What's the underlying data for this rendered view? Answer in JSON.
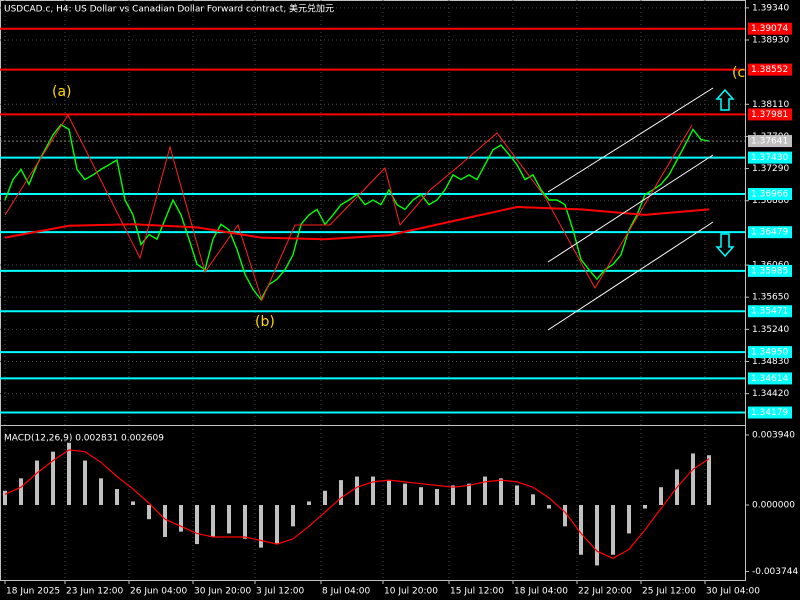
{
  "chart_data": [
    {
      "type": "line",
      "title": "USDCAD.c, H4:  US Dollar vs Canadian Dollar Forward contract, 美元兑加元",
      "xlim": [
        -0.625,
        92.5
      ],
      "xticks": [
        {
          "value": 0,
          "label": "18 Jun 2025"
        },
        {
          "value": 7.5,
          "label": "23 Jun 12:00"
        },
        {
          "value": 15.5,
          "label": "26 Jun 04:00"
        },
        {
          "value": 23.5,
          "label": "30 Jun 20:00"
        },
        {
          "value": 31.25,
          "label": "3 Jul 12:00"
        },
        {
          "value": 39.5,
          "label": "8 Jul 04:00"
        },
        {
          "value": 47.25,
          "label": "10 Jul 20:00"
        },
        {
          "value": 55.5,
          "label": "15 Jul 12:00"
        },
        {
          "value": 63.5,
          "label": "18 Jul 04:00"
        },
        {
          "value": 71.5,
          "label": "22 Jul 20:00"
        },
        {
          "value": 79.5,
          "label": "25 Jul 12:00"
        },
        {
          "value": 87.5,
          "label": "30 Jul 04:00"
        }
      ],
      "ylim": [
        1.3402,
        1.3944
      ],
      "yticks": [
        {
          "value": 1.3934,
          "label": "1.39340"
        },
        {
          "value": 1.3893,
          "label": "1.38930"
        },
        {
          "value": 1.3811,
          "label": "1.38110"
        },
        {
          "value": 1.377,
          "label": "1.37700"
        },
        {
          "value": 1.3729,
          "label": "1.37290"
        },
        {
          "value": 1.3688,
          "label": "1.36880"
        },
        {
          "value": 1.3606,
          "label": "1.36060"
        },
        {
          "value": 1.3565,
          "label": "1.35650"
        },
        {
          "value": 1.3524,
          "label": "1.35240"
        },
        {
          "value": 1.3483,
          "label": "1.34830"
        },
        {
          "value": 1.3442,
          "label": "1.34420"
        }
      ],
      "grid": true,
      "series": [
        {
          "color": "#00ff00",
          "values": [
            1.3689,
            1.3715,
            1.3728,
            1.3709,
            1.3734,
            1.3753,
            1.3772,
            1.3785,
            1.3779,
            1.3728,
            1.3715,
            1.3721,
            1.3728,
            1.3734,
            1.374,
            1.3689,
            1.367,
            1.3632,
            1.3645,
            1.3639,
            1.3664,
            1.3689,
            1.367,
            1.3639,
            1.3607,
            1.36,
            1.3639,
            1.3658,
            1.3651,
            1.3626,
            1.3594,
            1.3575,
            1.3562,
            1.3581,
            1.3588,
            1.36,
            1.3619,
            1.3658,
            1.367,
            1.3677,
            1.3658,
            1.367,
            1.3683,
            1.3689,
            1.3696,
            1.3683,
            1.3689,
            1.3683,
            1.3702,
            1.3683,
            1.3677,
            1.3689,
            1.3696,
            1.3683,
            1.3689,
            1.3702,
            1.3721,
            1.3715,
            1.3721,
            1.3715,
            1.3734,
            1.3753,
            1.3759,
            1.3747,
            1.3734,
            1.3715,
            1.3721,
            1.3702,
            1.3689,
            1.3689,
            1.3683,
            1.3651,
            1.3613,
            1.36,
            1.3588,
            1.36,
            1.3607,
            1.3619,
            1.3651,
            1.367,
            1.3696,
            1.3702,
            1.3709,
            1.3721,
            1.374,
            1.3759,
            1.3779,
            1.3766,
            1.3764
          ]
        },
        {
          "color": "#ff0000",
          "x": [
            0,
            8,
            16,
            24,
            32,
            40,
            48,
            56,
            64,
            72,
            80,
            88
          ],
          "values": [
            1.3641,
            1.3656,
            1.3658,
            1.3654,
            1.3641,
            1.3639,
            1.3644,
            1.3662,
            1.368,
            1.3677,
            1.367,
            1.3677
          ]
        }
      ],
      "last_price": {
        "value": 1.37641,
        "label": "1.37641"
      },
      "levels": [
        {
          "value": 1.39074,
          "label": "1.39074",
          "color": "#ff0000"
        },
        {
          "value": 1.38552,
          "label": "1.38552",
          "color": "#ff0000"
        },
        {
          "value": 1.37981,
          "label": "1.37981",
          "color": "#ff0000"
        },
        {
          "value": 1.3743,
          "label": "1.37430",
          "color": "#00ffff"
        },
        {
          "value": 1.36966,
          "label": "1.36966",
          "color": "#00ffff"
        },
        {
          "value": 1.36479,
          "label": "1.36479",
          "color": "#00ffff"
        },
        {
          "value": 1.35985,
          "label": "1.35985",
          "color": "#00ffff"
        },
        {
          "value": 1.35471,
          "label": "1.35471",
          "color": "#00ffff"
        },
        {
          "value": 1.3495,
          "label": "1.34950",
          "color": "#00ffff"
        },
        {
          "value": 1.34614,
          "label": "1.34614",
          "color": "#00ffff"
        },
        {
          "value": 1.34179,
          "label": "1.34179",
          "color": "#00ffff"
        }
      ],
      "annotations": [
        "(a)",
        "(b)",
        "(c"
      ]
    },
    {
      "type": "macd",
      "title": "MACD(12,26,9) 0.002831 0.002609",
      "xlim": [
        -0.625,
        92.5
      ],
      "ylim": [
        -0.00422,
        0.0045
      ],
      "yticks": [
        {
          "value": 0.00394,
          "label": "0.003940"
        },
        {
          "value": 0,
          "label": "0.000000"
        },
        {
          "value": -0.003744,
          "label": "-0.003744"
        }
      ],
      "x": [
        0,
        2,
        4,
        6,
        8,
        10,
        12,
        14,
        16,
        18,
        20,
        22,
        24,
        26,
        28,
        30,
        32,
        34,
        36,
        38,
        40,
        42,
        44,
        46,
        48,
        50,
        52,
        54,
        56,
        58,
        60,
        62,
        64,
        66,
        68,
        70,
        72,
        74,
        76,
        78,
        80,
        82,
        84,
        86,
        88
      ],
      "series": [
        {
          "type": "bar",
          "color": "#c0c0c0",
          "values": [
            0.0008,
            0.0015,
            0.0025,
            0.003,
            0.0035,
            0.0025,
            0.0015,
            0.0009,
            0.0002,
            -0.0008,
            -0.0018,
            -0.0015,
            -0.0022,
            -0.0018,
            -0.0016,
            -0.0019,
            -0.0024,
            -0.0022,
            -0.0012,
            0.0002,
            0.0008,
            0.0014,
            0.0016,
            0.0016,
            0.0014,
            0.0012,
            0.001,
            0.0009,
            0.0011,
            0.0012,
            0.0016,
            0.0015,
            0.0011,
            0.0006,
            -0.0002,
            -0.0012,
            -0.0028,
            -0.0034,
            -0.0028,
            -0.0016,
            -0.0002,
            0.001,
            0.002,
            0.0029,
            0.0028
          ]
        },
        {
          "type": "line",
          "color": "#ff0000",
          "values": [
            0.0006,
            0.001,
            0.0018,
            0.0025,
            0.0031,
            0.003,
            0.0024,
            0.0016,
            0.0009,
            0.0001,
            -0.0008,
            -0.0012,
            -0.0016,
            -0.0018,
            -0.0018,
            -0.0018,
            -0.002,
            -0.0022,
            -0.0019,
            -0.0012,
            -0.0004,
            0.0004,
            0.001,
            0.0013,
            0.0014,
            0.0013,
            0.0012,
            0.0011,
            0.001,
            0.0011,
            0.0013,
            0.0014,
            0.0013,
            0.001,
            0.0004,
            -0.0004,
            -0.0016,
            -0.0026,
            -0.003,
            -0.0025,
            -0.0014,
            -0.0002,
            0.001,
            0.002,
            0.0026
          ]
        }
      ]
    }
  ]
}
